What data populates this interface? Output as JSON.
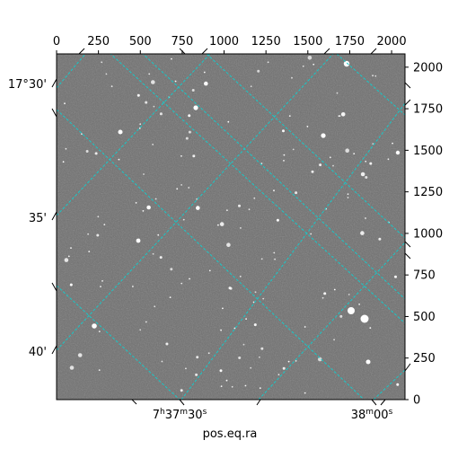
{
  "chart_data": {
    "type": "image",
    "xlabel": "pos.eq.ra",
    "ylabel": "",
    "pixel_axes": {
      "xlim": [
        0,
        2080
      ],
      "ylim": [
        0,
        2080
      ],
      "top_ticks": [
        "0",
        "250",
        "500",
        "750",
        "1000",
        "1250",
        "1500",
        "1750",
        "2000"
      ],
      "right_ticks": [
        "0",
        "250",
        "500",
        "750",
        "1000",
        "1250",
        "1500",
        "1750",
        "2000"
      ]
    },
    "world_axes": {
      "dec_ticks": [
        "17°30'",
        "35'",
        "40'"
      ],
      "ra_ticks": [
        "7h37m30s",
        "38m00s"
      ]
    },
    "grid": true,
    "grid_color": "#17c9c9",
    "background_color": "#6f6f6f"
  }
}
